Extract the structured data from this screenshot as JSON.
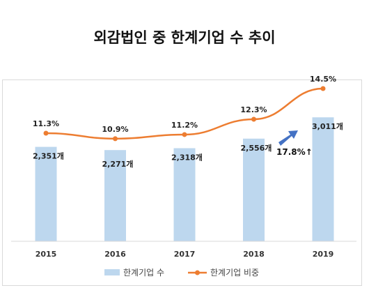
{
  "title": "외감법인 중 한계기업 수 추이",
  "chart_data": {
    "type": "bar",
    "categories": [
      "2015",
      "2016",
      "2017",
      "2018",
      "2019"
    ],
    "series": [
      {
        "name": "한계기업 수",
        "type": "bar",
        "values": [
          2351,
          2271,
          2318,
          2556,
          3011
        ],
        "labels": [
          "2,351개",
          "2,271개",
          "2,318개",
          "2,556개",
          "3,011개"
        ],
        "color": "#bdd7ee"
      },
      {
        "name": "한계기업 비중",
        "type": "line",
        "values": [
          11.3,
          10.9,
          11.2,
          12.3,
          14.5
        ],
        "labels": [
          "11.3%",
          "10.9%",
          "11.2%",
          "12.3%",
          "14.5%"
        ],
        "color": "#ed7d31"
      }
    ],
    "annotation": {
      "text": "17.8%↑",
      "arrow_color": "#4472c4"
    },
    "legend_position": "bottom",
    "grid": false
  }
}
